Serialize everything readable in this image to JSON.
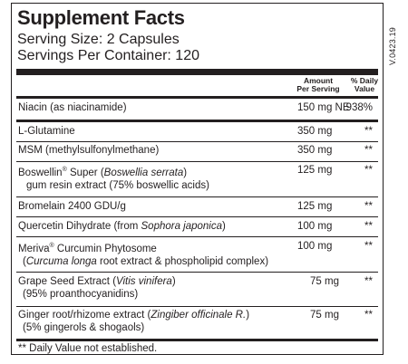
{
  "code": "V.0423.19",
  "title": "Supplement Facts",
  "serving_size": "Serving Size: 2 Capsules",
  "servings_per_container": "Servings Per Container: 120",
  "header": {
    "amount_line1": "Amount",
    "amount_line2": "Per Serving",
    "dv_line1": "% Daily",
    "dv_line2": "Value"
  },
  "rows": [
    {
      "name": "Niacin (as niacinamide)",
      "amount": "150 mg NE",
      "dv": "938%"
    },
    {
      "name": "L-Glutamine",
      "amount": "350 mg",
      "dv": "**"
    },
    {
      "name": "MSM (methylsulfonylmethane)",
      "amount": "350 mg",
      "dv": "**"
    },
    {
      "name_a": "Boswellin",
      "reg": "®",
      "name_b": " Super (",
      "name_i": "Boswellia serrata",
      "name_c": ")",
      "name_line2": "gum resin extract (75% boswellic acids)",
      "amount": "125 mg",
      "dv": "**"
    },
    {
      "name": "Bromelain 2400 GDU/g",
      "amount": "125 mg",
      "dv": "**"
    },
    {
      "name_a": "Quercetin Dihydrate (from ",
      "name_i": "Sophora japonica",
      "name_c": ")",
      "amount": "100 mg",
      "dv": "**"
    },
    {
      "name_a": "Meriva",
      "reg": "®",
      "name_b": " Curcumin Phytosome",
      "name_line2_a": "(",
      "name_line2_i": "Curcuma longa",
      "name_line2_c": " root extract & phospholipid complex)",
      "amount": "100 mg",
      "dv": "**"
    },
    {
      "name_a": "Grape Seed Extract (",
      "name_i": "Vitis vinifera",
      "name_c": ")",
      "name_line2": "(95% proanthocyanidins)",
      "amount": "75 mg",
      "dv": "**"
    },
    {
      "name_a": "Ginger root/rhizome extract (",
      "name_i": "Zingiber officinale R.",
      "name_c": ")",
      "name_line2": "(5% gingerols & shogaols)",
      "amount": "75 mg",
      "dv": "**"
    }
  ],
  "footnote": "** Daily Value not established."
}
